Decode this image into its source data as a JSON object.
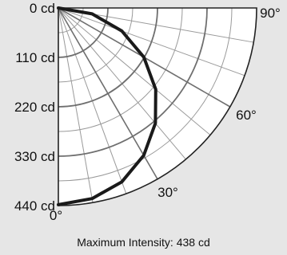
{
  "chart_data": {
    "type": "polar",
    "title": "",
    "radial_axis": {
      "unit": "cd",
      "ticks": [
        0,
        110,
        220,
        330,
        440
      ],
      "tick_labels": [
        "0 cd",
        "110 cd",
        "220 cd",
        "330 cd",
        "440 cd"
      ],
      "range": [
        0,
        440
      ]
    },
    "angular_axis": {
      "unit": "deg",
      "range": [
        0,
        90
      ],
      "ticks": [
        0,
        30,
        60,
        90
      ],
      "tick_labels": [
        "0°",
        "30°",
        "60°",
        "90°"
      ]
    },
    "series": [
      {
        "angles_deg": [
          0,
          10,
          20,
          30,
          40,
          50,
          60,
          70,
          80,
          90
        ],
        "values_cd": [
          438,
          431,
          412,
          379,
          335,
          282,
          219,
          150,
          76,
          0
        ]
      }
    ],
    "grid": true,
    "colors": {
      "background": "#e6e6e6",
      "plot_area": "#ffffff",
      "grid_minor": "#9a9a9a",
      "grid_major": "#6f6f6f",
      "curve": "#1a1a1a"
    }
  },
  "footer": {
    "text": "Maximum Intensity: 438 cd"
  }
}
